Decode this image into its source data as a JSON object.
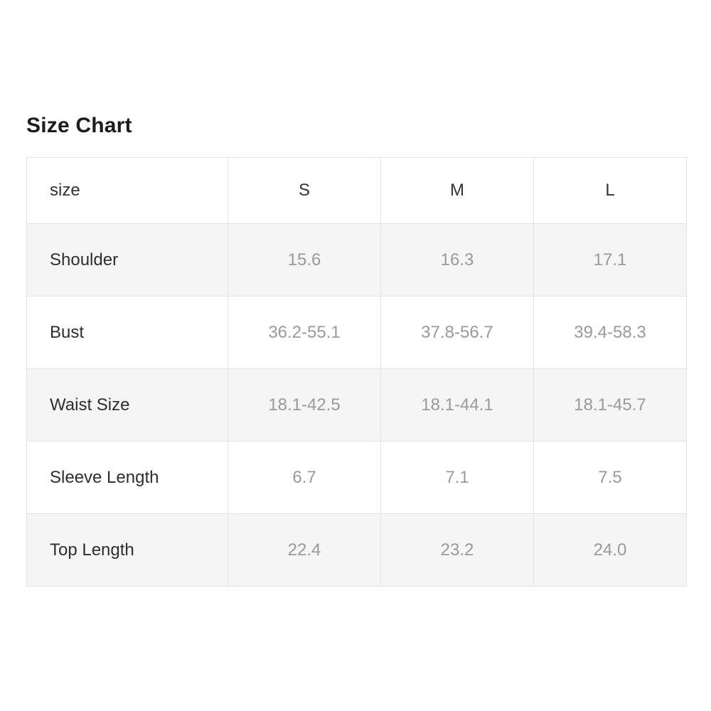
{
  "page": {
    "title": "Size Chart"
  },
  "table": {
    "columns": [
      "size",
      "S",
      "M",
      "L"
    ],
    "rows": [
      {
        "label": "Shoulder",
        "values": [
          "15.6",
          "16.3",
          "17.1"
        ]
      },
      {
        "label": "Bust",
        "values": [
          "36.2-55.1",
          "37.8-56.7",
          "39.4-58.3"
        ]
      },
      {
        "label": "Waist Size",
        "values": [
          "18.1-42.5",
          "18.1-44.1",
          "18.1-45.7"
        ]
      },
      {
        "label": "Sleeve Length",
        "values": [
          "6.7",
          "7.1",
          "7.5"
        ]
      },
      {
        "label": "Top Length",
        "values": [
          "22.4",
          "23.2",
          "24.0"
        ]
      }
    ]
  },
  "colors": {
    "title_text": "#1c1c1c",
    "label_text": "#2e2e2e",
    "header_text": "#333333",
    "value_text": "#9a9a9a",
    "border": "#e3e3e3",
    "row_alt_bg": "#f5f5f5",
    "page_bg": "#ffffff"
  }
}
